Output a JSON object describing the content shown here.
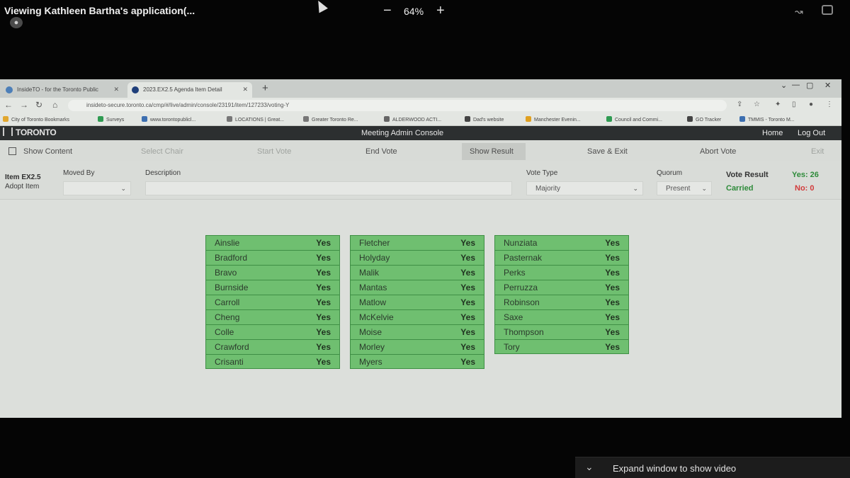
{
  "share": {
    "title": "Viewing Kathleen Bartha's application(...",
    "zoom_minus": "−",
    "zoom_level": "64%",
    "zoom_plus": "+"
  },
  "browser": {
    "tabs": [
      {
        "title": "InsideTO - for the Toronto Public"
      },
      {
        "title": "2023.EX2.5 Agenda Item Detail"
      }
    ],
    "url": "insideto-secure.toronto.ca/cmp/#/live/admin/console/23191/item/127233/voting-Y",
    "bookmarks": [
      "City of Toronto Bookmarks",
      "Surveys",
      "www.torontopublicl...",
      "LOCATIONS | Great...",
      "Greater Toronto Re...",
      "ALDERWOOD ACTI...",
      "Dad's website",
      "Manchester Evenin...",
      "Council and Commi...",
      "GO Tracker",
      "TMMIS - Toronto M..."
    ]
  },
  "app": {
    "logo": "TORONTO",
    "console_title": "Meeting Admin Console",
    "home": "Home",
    "logout": "Log Out"
  },
  "toolbar": {
    "show_content": "Show Content",
    "select_chair": "Select Chair",
    "start_vote": "Start Vote",
    "end_vote": "End Vote",
    "show_result": "Show Result",
    "save_exit": "Save & Exit",
    "abort_vote": "Abort Vote",
    "exit": "Exit"
  },
  "form": {
    "item_code": "Item EX2.5",
    "item_desc": "Adopt Item",
    "moved_by_label": "Moved By",
    "moved_by_value": "",
    "description_label": "Description",
    "description_value": "",
    "vote_type_label": "Vote Type",
    "vote_type_value": "Majority",
    "quorum_label": "Quorum",
    "quorum_value": "Present",
    "vote_result_label": "Vote Result",
    "vote_result_outcome": "Carried",
    "yes_text": "Yes: 26",
    "no_text": "No: 0"
  },
  "votes": {
    "col1": [
      {
        "name": "Ainslie",
        "vote": "Yes"
      },
      {
        "name": "Bradford",
        "vote": "Yes"
      },
      {
        "name": "Bravo",
        "vote": "Yes"
      },
      {
        "name": "Burnside",
        "vote": "Yes"
      },
      {
        "name": "Carroll",
        "vote": "Yes"
      },
      {
        "name": "Cheng",
        "vote": "Yes"
      },
      {
        "name": "Colle",
        "vote": "Yes"
      },
      {
        "name": "Crawford",
        "vote": "Yes"
      },
      {
        "name": "Crisanti",
        "vote": "Yes"
      }
    ],
    "col2": [
      {
        "name": "Fletcher",
        "vote": "Yes"
      },
      {
        "name": "Holyday",
        "vote": "Yes"
      },
      {
        "name": "Malik",
        "vote": "Yes"
      },
      {
        "name": "Mantas",
        "vote": "Yes"
      },
      {
        "name": "Matlow",
        "vote": "Yes"
      },
      {
        "name": "McKelvie",
        "vote": "Yes"
      },
      {
        "name": "Moise",
        "vote": "Yes"
      },
      {
        "name": "Morley",
        "vote": "Yes"
      },
      {
        "name": "Myers",
        "vote": "Yes"
      }
    ],
    "col3": [
      {
        "name": "Nunziata",
        "vote": "Yes"
      },
      {
        "name": "Pasternak",
        "vote": "Yes"
      },
      {
        "name": "Perks",
        "vote": "Yes"
      },
      {
        "name": "Perruzza",
        "vote": "Yes"
      },
      {
        "name": "Robinson",
        "vote": "Yes"
      },
      {
        "name": "Saxe",
        "vote": "Yes"
      },
      {
        "name": "Thompson",
        "vote": "Yes"
      },
      {
        "name": "Tory",
        "vote": "Yes"
      }
    ]
  },
  "expand": {
    "label": "Expand window to show video"
  },
  "colors": {
    "vote_yes_bg": "#6fbf70",
    "result_green": "#2e8b3a",
    "result_red": "#d23a3a",
    "header_dark": "#2c2f30"
  }
}
